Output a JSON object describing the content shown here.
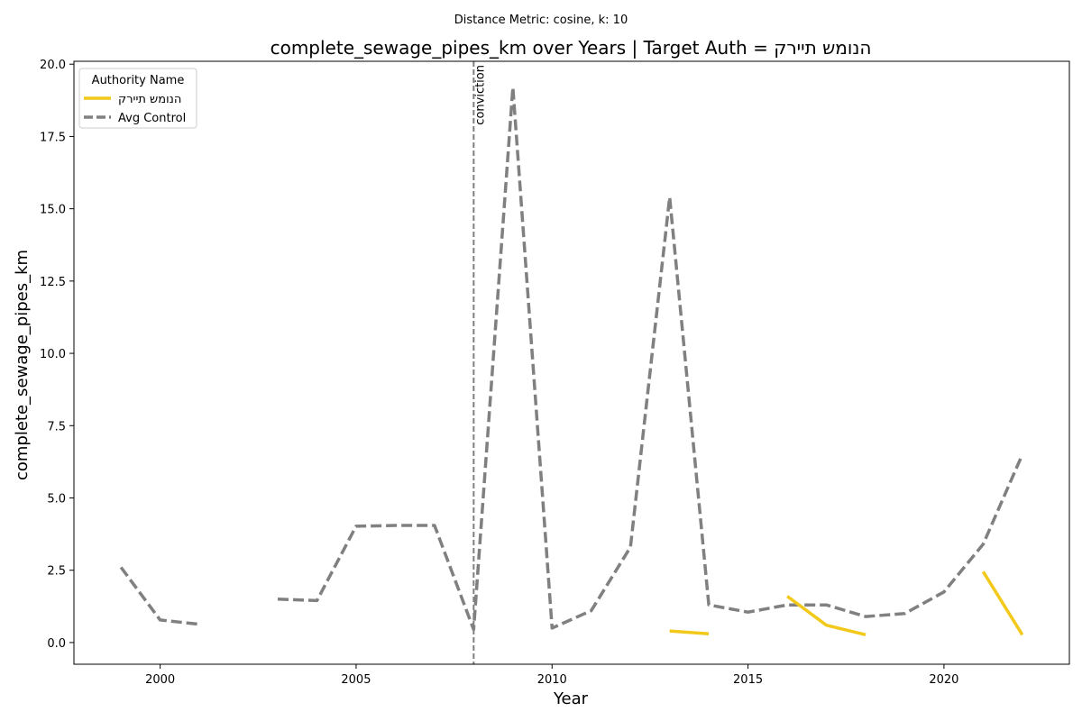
{
  "chart_data": {
    "type": "line",
    "suptitle": "Distance Metric: cosine, k: 10",
    "title": "complete_sewage_pipes_km over Years | Target Auth = הנומש תיירק",
    "xlabel": "Year",
    "ylabel": "complete_sewage_pipes_km",
    "xlim": [
      1997.8,
      2023.2
    ],
    "ylim": [
      -0.75,
      20.1
    ],
    "xticks": [
      2000,
      2005,
      2010,
      2015,
      2020
    ],
    "yticks": [
      0.0,
      2.5,
      5.0,
      7.5,
      10.0,
      12.5,
      15.0,
      17.5,
      20.0
    ],
    "ytick_labels": [
      "0.0",
      "2.5",
      "5.0",
      "7.5",
      "10.0",
      "12.5",
      "15.0",
      "17.5",
      "20.0"
    ],
    "legend": {
      "title": "Authority Name",
      "placement": "upper-left"
    },
    "vline": {
      "x": 2008,
      "label": "conviction",
      "color": "#808080"
    },
    "series": [
      {
        "name": "הנומש תיירק",
        "color": "#f2c91b",
        "style": "solid",
        "points": [
          [
            2013,
            0.4
          ],
          [
            2014,
            0.3
          ],
          [
            2015,
            null
          ],
          [
            2016,
            1.6
          ],
          [
            2017,
            0.6
          ],
          [
            2018,
            0.27
          ],
          [
            2019,
            null
          ],
          [
            2021,
            2.45
          ],
          [
            2022,
            0.27
          ]
        ]
      },
      {
        "name": "Avg Control",
        "color": "#808080",
        "style": "dashed",
        "points": [
          [
            1999,
            2.6
          ],
          [
            2000,
            0.78
          ],
          [
            2001,
            0.63
          ],
          [
            2002,
            null
          ],
          [
            2003,
            1.5
          ],
          [
            2004,
            1.45
          ],
          [
            2005,
            4.02
          ],
          [
            2006,
            4.05
          ],
          [
            2007,
            4.05
          ],
          [
            2008,
            0.45
          ],
          [
            2009,
            19.2
          ],
          [
            2010,
            0.5
          ],
          [
            2011,
            1.1
          ],
          [
            2012,
            3.3
          ],
          [
            2013,
            15.4
          ],
          [
            2014,
            1.3
          ],
          [
            2015,
            1.05
          ],
          [
            2016,
            1.3
          ],
          [
            2017,
            1.3
          ],
          [
            2018,
            0.9
          ],
          [
            2019,
            1.0
          ],
          [
            2020,
            1.75
          ],
          [
            2021,
            3.4
          ],
          [
            2022,
            6.5
          ]
        ]
      }
    ]
  }
}
